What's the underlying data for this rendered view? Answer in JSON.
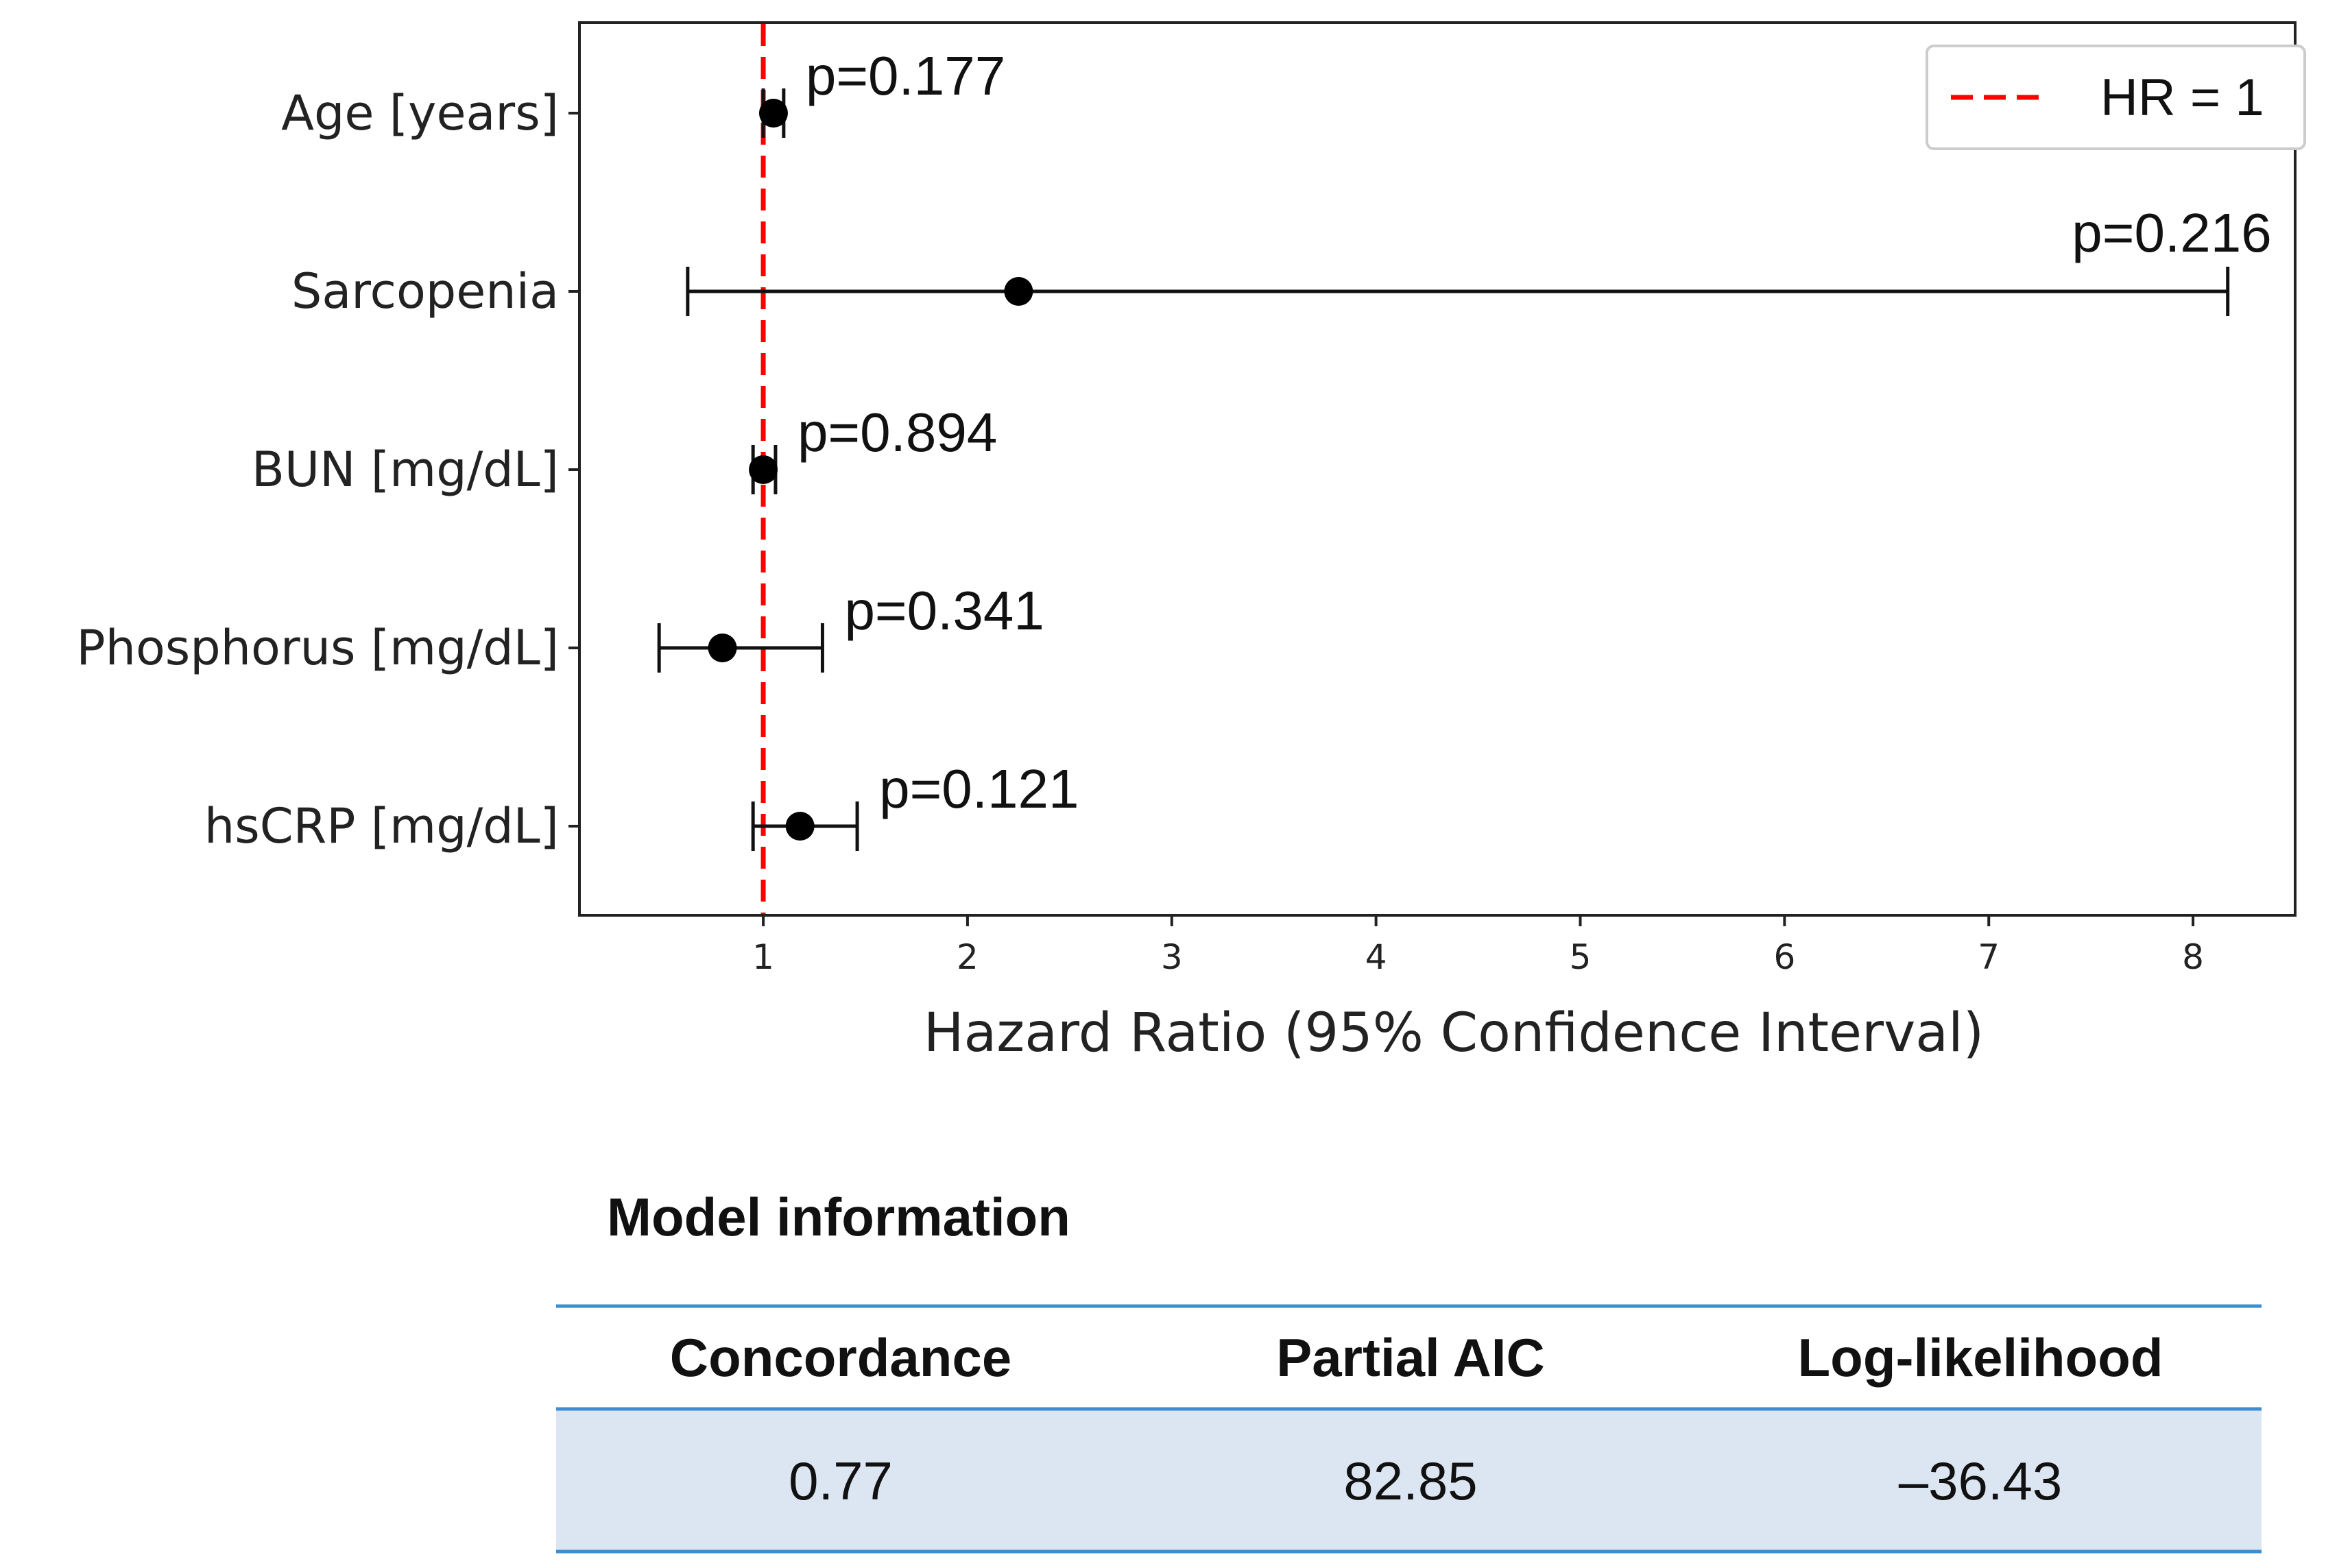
{
  "chart_data": {
    "type": "forest",
    "xlabel": "Hazard Ratio (95% Confidence Interval)",
    "xlim": [
      0.1,
      8.5
    ],
    "xticks": [
      1,
      2,
      3,
      4,
      5,
      6,
      7,
      8
    ],
    "reference_line": {
      "value": 1,
      "label": "HR = 1",
      "color": "#ff0000",
      "style": "dashed"
    },
    "legend_position": "top-right",
    "rows": [
      {
        "label": "Age [years]",
        "hr": 1.05,
        "ci_low": 1.0,
        "ci_high": 1.1,
        "p": "p=0.177"
      },
      {
        "label": "Sarcopenia",
        "hr": 2.25,
        "ci_low": 0.63,
        "ci_high": 8.17,
        "p": "p=0.216"
      },
      {
        "label": "BUN [mg/dL]",
        "hr": 1.0,
        "ci_low": 0.95,
        "ci_high": 1.06,
        "p": "p=0.894"
      },
      {
        "label": "Phosphorus [mg/dL]",
        "hr": 0.8,
        "ci_low": 0.49,
        "ci_high": 1.29,
        "p": "p=0.341"
      },
      {
        "label": "hsCRP [mg/dL]",
        "hr": 1.18,
        "ci_low": 0.95,
        "ci_high": 1.46,
        "p": "p=0.121"
      }
    ]
  },
  "model_info": {
    "title": "Model information",
    "headers": [
      "Concordance",
      "Partial AIC",
      "Log-likelihood"
    ],
    "values": [
      "0.77",
      "82.85",
      "–36.43"
    ],
    "rule_color": "#3c8dd3",
    "row_fill": "#dce6f2"
  }
}
